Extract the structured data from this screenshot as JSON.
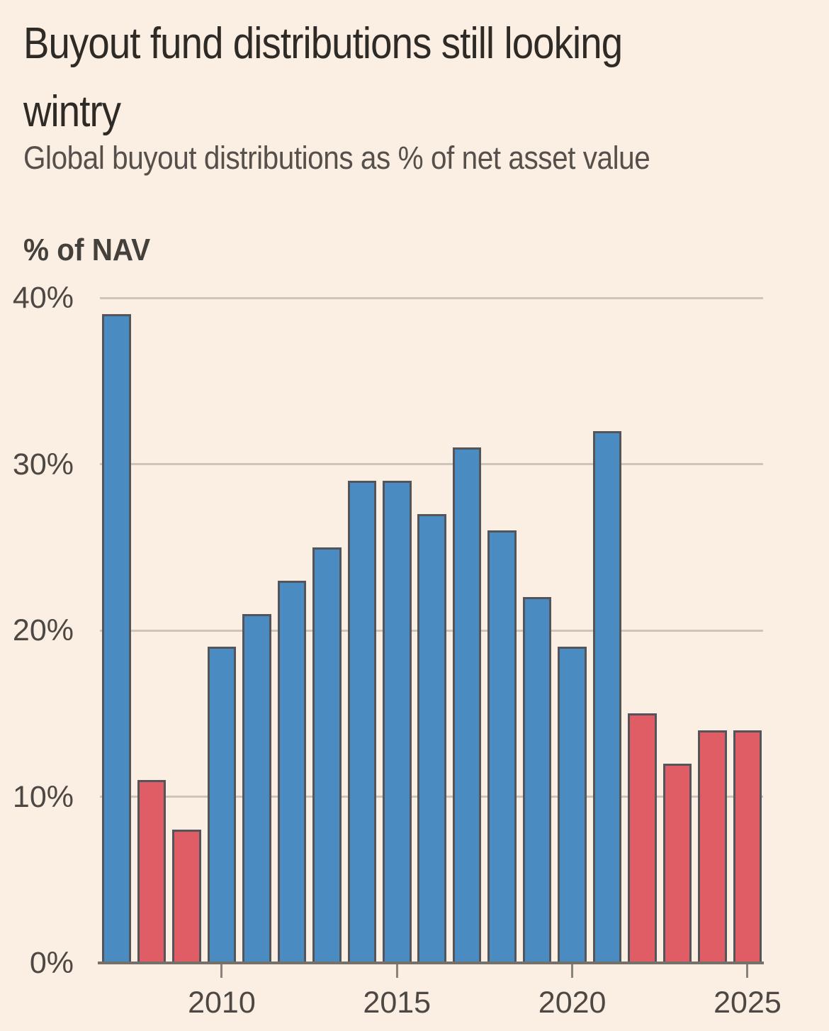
{
  "header": {
    "title_lines": [
      "Buyout fund distributions still looking",
      "wintry"
    ]
  },
  "chart_data": {
    "type": "bar",
    "title": "Buyout fund distributions still looking wintry",
    "subtitle": "Global buyout distributions as % of net asset value",
    "ylabel": "% of NAV",
    "xlabel": "",
    "ylim": [
      0,
      40
    ],
    "grid": "horizontal",
    "legend": "none",
    "categories": [
      2007,
      2008,
      2009,
      2010,
      2011,
      2012,
      2013,
      2014,
      2015,
      2016,
      2017,
      2018,
      2019,
      2020,
      2021,
      2022,
      2023,
      2024,
      2025
    ],
    "values": [
      39,
      11,
      8,
      19,
      21,
      23,
      25,
      29,
      29,
      27,
      31,
      26,
      22,
      19,
      32,
      15,
      12,
      14,
      14
    ],
    "bar_color_keys": [
      "blue",
      "red",
      "red",
      "blue",
      "blue",
      "blue",
      "blue",
      "blue",
      "blue",
      "blue",
      "blue",
      "blue",
      "blue",
      "blue",
      "blue",
      "red",
      "red",
      "red",
      "red"
    ],
    "yticks": [
      {
        "value": 40,
        "label": "40%"
      },
      {
        "value": 30,
        "label": "30%"
      },
      {
        "value": 20,
        "label": "20%"
      },
      {
        "value": 10,
        "label": "10%"
      },
      {
        "value": 0,
        "label": "0%"
      }
    ],
    "xticks": [
      {
        "year": 2010,
        "label": "2010"
      },
      {
        "year": 2015,
        "label": "2015"
      },
      {
        "year": 2020,
        "label": "2020"
      },
      {
        "year": 2025,
        "label": "2025"
      }
    ],
    "colors": {
      "blue": "#4A8BC2",
      "red": "#E05D65",
      "bar_border": "#54555A",
      "gridline": "#CDC5BC",
      "axis": "#757069",
      "tick": "#8A837B",
      "background": "#FBEEE2",
      "title_text": "#2E2A26",
      "subtitle_text": "#55504B",
      "tick_label_text": "#4D4843"
    }
  }
}
